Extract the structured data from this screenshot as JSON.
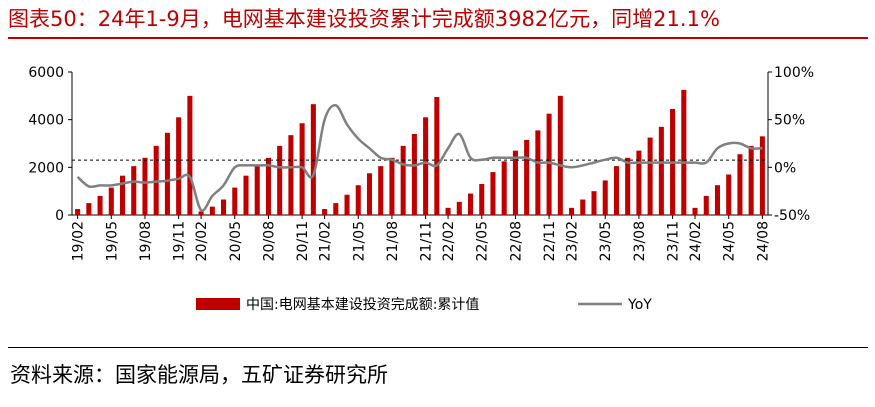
{
  "title": "图表50：24年1-9月，电网基本建设投资累计完成额3982亿元，同增21.1%",
  "source": "资料来源：国家能源局，五矿证券研究所",
  "colors": {
    "bar": "#c00000",
    "line": "#808080",
    "title": "#c00000",
    "refline": "#000000"
  },
  "chart_data": {
    "type": "bar",
    "legend_position": "bottom",
    "grid": false,
    "x": [
      "19/02",
      "19/03",
      "19/04",
      "19/05",
      "19/06",
      "19/07",
      "19/08",
      "19/09",
      "19/10",
      "19/11",
      "19/12",
      "20/02",
      "20/03",
      "20/04",
      "20/05",
      "20/06",
      "20/07",
      "20/08",
      "20/09",
      "20/10",
      "20/11",
      "20/12",
      "21/02",
      "21/03",
      "21/04",
      "21/05",
      "21/06",
      "21/07",
      "21/08",
      "21/09",
      "21/10",
      "21/11",
      "21/12",
      "22/02",
      "22/03",
      "22/04",
      "22/05",
      "22/06",
      "22/07",
      "22/08",
      "22/09",
      "22/10",
      "22/11",
      "22/12",
      "23/02",
      "23/03",
      "23/04",
      "23/05",
      "23/06",
      "23/07",
      "23/08",
      "23/09",
      "23/10",
      "23/11",
      "23/12",
      "24/02",
      "24/03",
      "24/04",
      "24/05",
      "24/06",
      "24/07",
      "24/08"
    ],
    "x_ticks": [
      "19/02",
      "19/05",
      "19/08",
      "19/11",
      "20/02",
      "20/05",
      "20/08",
      "20/11",
      "21/02",
      "21/05",
      "21/08",
      "21/11",
      "22/02",
      "22/05",
      "22/08",
      "22/11",
      "23/02",
      "23/05",
      "23/08",
      "23/11",
      "24/02",
      "24/05",
      "24/08"
    ],
    "y_left_ticks": [
      "0",
      "2000",
      "4000",
      "6000"
    ],
    "y_left_lim": [
      0,
      6000
    ],
    "y_right_ticks": [
      "-50%",
      "0%",
      "50%",
      "100%"
    ],
    "y_right_lim": [
      -50,
      100
    ],
    "reference_line_left": 2300,
    "series": [
      {
        "name": "中国:电网基本建设投资完成额:累计值",
        "type": "bar",
        "axis": "left",
        "values": [
          250,
          500,
          800,
          1150,
          1650,
          2050,
          2400,
          2900,
          3450,
          4100,
          5000,
          150,
          350,
          650,
          1150,
          1650,
          2050,
          2400,
          2900,
          3350,
          3850,
          4650,
          250,
          500,
          850,
          1250,
          1750,
          2050,
          2400,
          2900,
          3400,
          4100,
          4950,
          300,
          550,
          900,
          1300,
          1800,
          2250,
          2700,
          3150,
          3550,
          4250,
          5000,
          300,
          650,
          1000,
          1450,
          2050,
          2400,
          2700,
          3250,
          3700,
          4450,
          5250,
          300,
          800,
          1250,
          1700,
          2550,
          2900,
          3300
        ]
      },
      {
        "name": "YoY",
        "type": "line",
        "axis": "right",
        "values": [
          -10,
          -20,
          -19,
          -19,
          -17,
          -15,
          -16,
          -15,
          -14,
          -12,
          -10,
          -45,
          -30,
          -19,
          0,
          2,
          2,
          2,
          0,
          0,
          0,
          -8,
          50,
          65,
          45,
          30,
          20,
          10,
          8,
          3,
          2,
          5,
          2,
          20,
          35,
          10,
          8,
          10,
          10,
          10,
          10,
          5,
          5,
          2,
          0,
          2,
          5,
          8,
          10,
          5,
          5,
          5,
          5,
          5,
          5,
          5,
          5,
          20,
          25,
          25,
          20,
          20
        ]
      }
    ]
  }
}
